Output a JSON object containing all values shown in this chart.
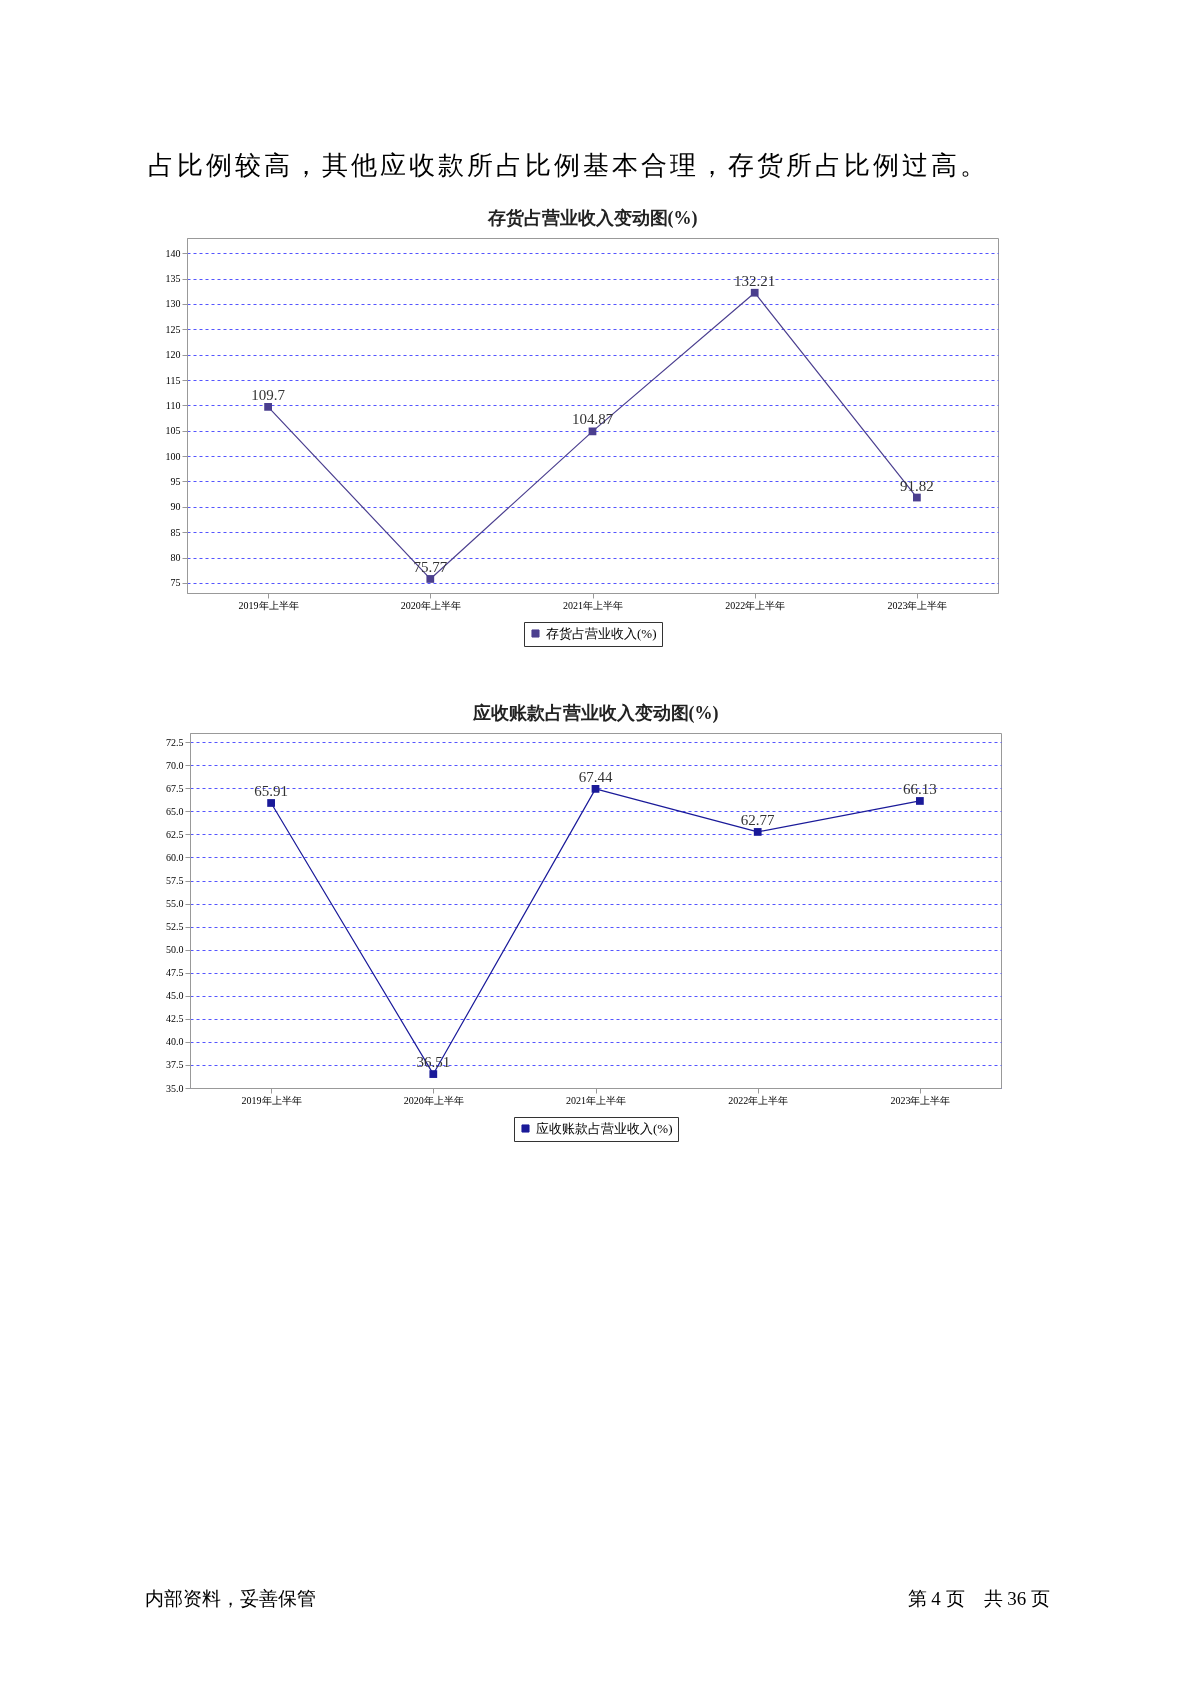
{
  "chart_data": [
    {
      "type": "line",
      "title": "存货占营业收入变动图(%)",
      "categories": [
        "2019年上半年",
        "2020年上半年",
        "2021年上半年",
        "2022年上半年",
        "2023年上半年"
      ],
      "series": [
        {
          "name": "存货占营业收入(%)",
          "color": "#4b3f8f",
          "values": [
            109.7,
            75.77,
            104.87,
            132.21,
            91.82
          ]
        }
      ],
      "ylim": [
        73,
        143
      ],
      "yticks": [
        75,
        80,
        85,
        90,
        95,
        100,
        105,
        110,
        115,
        120,
        125,
        130,
        135,
        140
      ],
      "grid": "y",
      "legend": "bottom",
      "marker": "square",
      "line_style": "solid",
      "data_labels": true,
      "annotations": [
        "占比例较高，其他应收款所占比例基本合理，存货所占比例过高。"
      ]
    },
    {
      "type": "line",
      "title": "应收账款占营业收入变动图(%)",
      "categories": [
        "2019年上半年",
        "2020年上半年",
        "2021年上半年",
        "2022年上半年",
        "2023年上半年"
      ],
      "series": [
        {
          "name": "应收账款占营业收入(%)",
          "color": "#1a1a99",
          "values": [
            65.91,
            36.51,
            67.44,
            62.77,
            66.13
          ]
        }
      ],
      "ylim": [
        35,
        73.5
      ],
      "yticks": [
        {
          "value": 35,
          "label": "35.0"
        },
        37.5,
        {
          "value": 40,
          "label": "40.0"
        },
        42.5,
        {
          "value": 45,
          "label": "45.0"
        },
        47.5,
        {
          "value": 50,
          "label": "50.0"
        },
        52.5,
        {
          "value": 55,
          "label": "55.0"
        },
        57.5,
        {
          "value": 60,
          "label": "60.0"
        },
        62.5,
        {
          "value": 65,
          "label": "65.0"
        },
        67.5,
        {
          "value": 70,
          "label": "70.0"
        },
        72.5
      ],
      "grid": "y",
      "legend": "bottom",
      "marker": "square",
      "line_style": "solid",
      "data_labels": true,
      "annotations": [
        "内部资料，妥善保管",
        "第 4 页　共 36 页"
      ]
    }
  ]
}
